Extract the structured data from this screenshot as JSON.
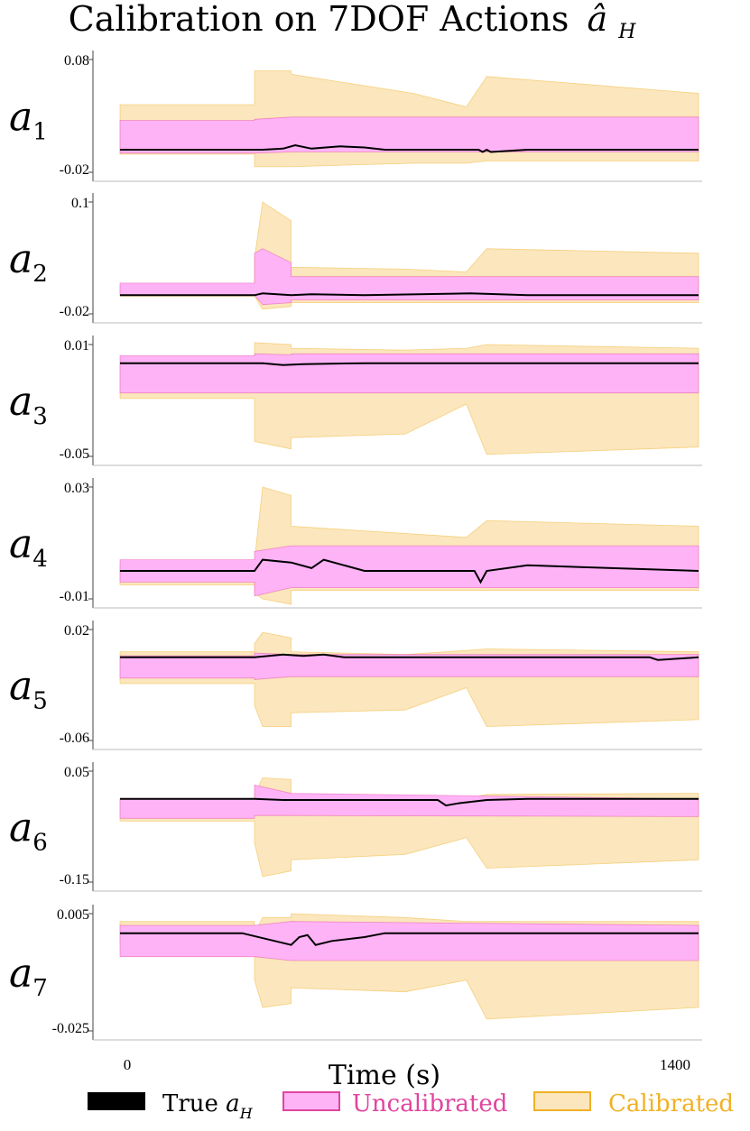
{
  "figure": {
    "title": "Calibration on 7DOF Actions",
    "title_math": "â",
    "title_sub": "H",
    "xlabel": "Time (s)",
    "x_ticks": [
      "0",
      "1400"
    ],
    "legend": {
      "true_label": "True",
      "true_math": "a",
      "true_sub": "H",
      "uncal_label": "Uncalibrated",
      "cal_label": "Calibrated"
    },
    "colors": {
      "true": "#000000",
      "uncal_fill": "#ffb3f7",
      "uncal_stroke": "#e0449e",
      "cal_fill": "#fbe6bd",
      "cal_stroke": "#f0b126",
      "axis": "#444444"
    }
  },
  "chart_data": [
    {
      "type": "area",
      "name": "a1",
      "ylabel": "a",
      "ylabel_sub": "1",
      "tick_labels": [
        "0.08",
        "-0.02"
      ],
      "ylim": [
        -0.02,
        0.08
      ],
      "xlim": [
        0,
        1400
      ],
      "series": [
        {
          "name": "Calibrated",
          "x": [
            0,
            330,
            330,
            420,
            420,
            720,
            850,
            900,
            1420
          ],
          "upper": [
            0.04,
            0.04,
            0.07,
            0.07,
            0.067,
            0.05,
            0.038,
            0.065,
            0.05
          ],
          "lower": [
            -0.004,
            -0.004,
            -0.015,
            -0.015,
            -0.015,
            -0.012,
            -0.012,
            -0.01,
            -0.01
          ]
        },
        {
          "name": "Uncalibrated",
          "x": [
            0,
            330,
            330,
            420,
            1420
          ],
          "upper": [
            0.026,
            0.026,
            0.027,
            0.029,
            0.029
          ],
          "lower": [
            -0.003,
            -0.003,
            -0.003,
            -0.002,
            -0.002
          ]
        },
        {
          "name": "True",
          "x": [
            0,
            350,
            400,
            430,
            470,
            540,
            600,
            650,
            880,
            890,
            900,
            910,
            1000,
            1420
          ],
          "y": [
            0.0,
            0.0,
            0.001,
            0.004,
            0.001,
            0.003,
            0.002,
            0.0,
            0.0,
            -0.002,
            0.0,
            -0.002,
            0.0,
            0.0
          ]
        }
      ]
    },
    {
      "type": "area",
      "name": "a2",
      "ylabel": "a",
      "ylabel_sub": "2",
      "tick_labels": [
        "0.1",
        "-0.02"
      ],
      "ylim": [
        -0.02,
        0.1
      ],
      "xlim": [
        0,
        1400
      ],
      "series": [
        {
          "name": "Calibrated",
          "x": [
            0,
            330,
            330,
            350,
            420,
            420,
            700,
            850,
            900,
            1420
          ],
          "upper": [
            0.01,
            0.01,
            0.04,
            0.1,
            0.08,
            0.03,
            0.028,
            0.025,
            0.05,
            0.045
          ],
          "lower": [
            -0.001,
            -0.001,
            -0.001,
            -0.015,
            -0.012,
            -0.008,
            -0.008,
            -0.008,
            -0.008,
            -0.008
          ]
        },
        {
          "name": "Uncalibrated",
          "x": [
            0,
            330,
            330,
            350,
            420,
            420,
            1420
          ],
          "upper": [
            0.013,
            0.013,
            0.045,
            0.05,
            0.035,
            0.02,
            0.02
          ],
          "lower": [
            0.0,
            0.0,
            0.0,
            -0.01,
            -0.008,
            -0.005,
            -0.005
          ]
        },
        {
          "name": "True",
          "x": [
            0,
            330,
            350,
            420,
            470,
            600,
            860,
            1000,
            1420
          ],
          "y": [
            0.0,
            0.0,
            0.002,
            0.0,
            0.001,
            0.0,
            0.002,
            0.0,
            0.0
          ]
        }
      ]
    },
    {
      "type": "area",
      "name": "a3",
      "ylabel": "a",
      "ylabel_sub": "3",
      "tick_labels": [
        "0.01",
        "-0.05"
      ],
      "ylim": [
        -0.05,
        0.01
      ],
      "xlim": [
        0,
        1400
      ],
      "series": [
        {
          "name": "Calibrated",
          "x": [
            0,
            330,
            330,
            420,
            420,
            700,
            850,
            900,
            1420
          ],
          "upper": [
            0.0,
            0.0,
            0.011,
            0.01,
            0.008,
            0.007,
            0.008,
            0.01,
            0.008
          ],
          "lower": [
            -0.019,
            -0.019,
            -0.042,
            -0.046,
            -0.04,
            -0.038,
            -0.022,
            -0.049,
            -0.045
          ]
        },
        {
          "name": "Uncalibrated",
          "x": [
            0,
            330,
            330,
            420,
            420,
            1420
          ],
          "upper": [
            0.004,
            0.004,
            0.005,
            0.0045,
            0.005,
            0.005
          ],
          "lower": [
            -0.016,
            -0.016,
            -0.016,
            -0.016,
            -0.016,
            -0.016
          ]
        },
        {
          "name": "True",
          "x": [
            0,
            330,
            350,
            400,
            450,
            600,
            860,
            1000,
            1200,
            1300,
            1420
          ],
          "y": [
            0.0,
            0.0,
            0.0,
            -0.001,
            -0.0005,
            0.0,
            0.0,
            0.0,
            0.0,
            0.0,
            0.0
          ]
        }
      ]
    },
    {
      "type": "area",
      "name": "a4",
      "ylabel": "a",
      "ylabel_sub": "4",
      "tick_labels": [
        "0.03",
        "-0.01"
      ],
      "ylim": [
        -0.01,
        0.03
      ],
      "xlim": [
        0,
        1400
      ],
      "series": [
        {
          "name": "Calibrated",
          "x": [
            0,
            330,
            330,
            350,
            420,
            420,
            850,
            900,
            1420
          ],
          "upper": [
            0.002,
            0.002,
            0.004,
            0.03,
            0.027,
            0.016,
            0.012,
            0.018,
            0.016
          ],
          "lower": [
            -0.005,
            -0.005,
            -0.008,
            -0.01,
            -0.012,
            -0.007,
            -0.007,
            -0.007,
            -0.007
          ]
        },
        {
          "name": "Uncalibrated",
          "x": [
            0,
            330,
            330,
            420,
            1420
          ],
          "upper": [
            0.004,
            0.004,
            0.007,
            0.009,
            0.009
          ],
          "lower": [
            -0.004,
            -0.004,
            -0.009,
            -0.006,
            -0.006
          ]
        },
        {
          "name": "True",
          "x": [
            0,
            330,
            350,
            420,
            470,
            500,
            600,
            870,
            885,
            900,
            1000,
            1420
          ],
          "y": [
            0.0,
            0.0,
            0.004,
            0.003,
            0.001,
            0.004,
            0.0,
            0.0,
            -0.004,
            0.0,
            0.002,
            0.0
          ]
        }
      ]
    },
    {
      "type": "area",
      "name": "a5",
      "ylabel": "a",
      "ylabel_sub": "5",
      "tick_labels": [
        "0.02",
        "-0.06"
      ],
      "ylim": [
        -0.06,
        0.02
      ],
      "xlim": [
        0,
        1400
      ],
      "series": [
        {
          "name": "Calibrated",
          "x": [
            0,
            330,
            330,
            350,
            420,
            420,
            700,
            850,
            900,
            1420
          ],
          "upper": [
            0.004,
            0.004,
            0.01,
            0.018,
            0.014,
            0.004,
            0.002,
            0.005,
            0.006,
            0.004
          ],
          "lower": [
            -0.019,
            -0.019,
            -0.035,
            -0.05,
            -0.05,
            -0.04,
            -0.038,
            -0.022,
            -0.05,
            -0.045
          ]
        },
        {
          "name": "Uncalibrated",
          "x": [
            0,
            330,
            330,
            420,
            1420
          ],
          "upper": [
            0.001,
            0.001,
            0.003,
            0.002,
            0.002
          ],
          "lower": [
            -0.015,
            -0.015,
            -0.016,
            -0.014,
            -0.014
          ]
        },
        {
          "name": "True",
          "x": [
            0,
            330,
            400,
            450,
            500,
            550,
            600,
            1000,
            1300,
            1320,
            1420
          ],
          "y": [
            0.0,
            0.0,
            0.002,
            0.001,
            0.002,
            0.0,
            0.0,
            0.0,
            0.0,
            -0.002,
            0.0
          ]
        }
      ]
    },
    {
      "type": "area",
      "name": "a6",
      "ylabel": "a",
      "ylabel_sub": "6",
      "tick_labels": [
        "0.05",
        "-0.15"
      ],
      "ylim": [
        -0.15,
        0.05
      ],
      "xlim": [
        0,
        1400
      ],
      "series": [
        {
          "name": "Calibrated",
          "x": [
            0,
            330,
            330,
            350,
            420,
            420,
            700,
            850,
            900,
            1420
          ],
          "upper": [
            0.0,
            0.0,
            0.008,
            0.038,
            0.035,
            0.0,
            0.0,
            0.0,
            0.008,
            0.01
          ],
          "lower": [
            -0.04,
            -0.04,
            -0.08,
            -0.14,
            -0.13,
            -0.11,
            -0.1,
            -0.07,
            -0.125,
            -0.11
          ]
        },
        {
          "name": "Uncalibrated",
          "x": [
            0,
            330,
            330,
            420,
            1420
          ],
          "upper": [
            0.0,
            0.0,
            0.025,
            0.01,
            0.0
          ],
          "lower": [
            -0.035,
            -0.035,
            -0.03,
            -0.03,
            -0.032
          ]
        },
        {
          "name": "True",
          "x": [
            0,
            330,
            400,
            780,
            800,
            830,
            900,
            1000,
            1420
          ],
          "y": [
            0.0,
            0.0,
            -0.002,
            -0.002,
            -0.012,
            -0.008,
            -0.002,
            0.0,
            0.0
          ]
        }
      ]
    },
    {
      "type": "area",
      "name": "a7",
      "ylabel": "a",
      "ylabel_sub": "7",
      "tick_labels": [
        "0.005",
        "-0.025"
      ],
      "ylim": [
        -0.025,
        0.005
      ],
      "xlim": [
        0,
        1400
      ],
      "series": [
        {
          "name": "Calibrated",
          "x": [
            0,
            330,
            330,
            350,
            420,
            420,
            700,
            850,
            900,
            1420
          ],
          "upper": [
            0.003,
            0.003,
            0.0,
            0.004,
            0.004,
            0.005,
            0.004,
            0.003,
            0.003,
            0.003
          ],
          "lower": [
            -0.003,
            -0.003,
            -0.012,
            -0.019,
            -0.018,
            -0.014,
            -0.015,
            -0.012,
            -0.022,
            -0.019
          ]
        },
        {
          "name": "Uncalibrated",
          "x": [
            0,
            330,
            330,
            420,
            1420
          ],
          "upper": [
            0.002,
            0.002,
            0.002,
            0.003,
            0.002
          ],
          "lower": [
            -0.006,
            -0.006,
            -0.006,
            -0.007,
            -0.007
          ]
        },
        {
          "name": "True",
          "x": [
            0,
            300,
            420,
            440,
            460,
            480,
            520,
            600,
            650,
            1420
          ],
          "y": [
            0.0,
            0.0,
            -0.003,
            -0.001,
            -0.0005,
            -0.003,
            -0.002,
            -0.001,
            0.0,
            0.0
          ]
        }
      ]
    }
  ]
}
